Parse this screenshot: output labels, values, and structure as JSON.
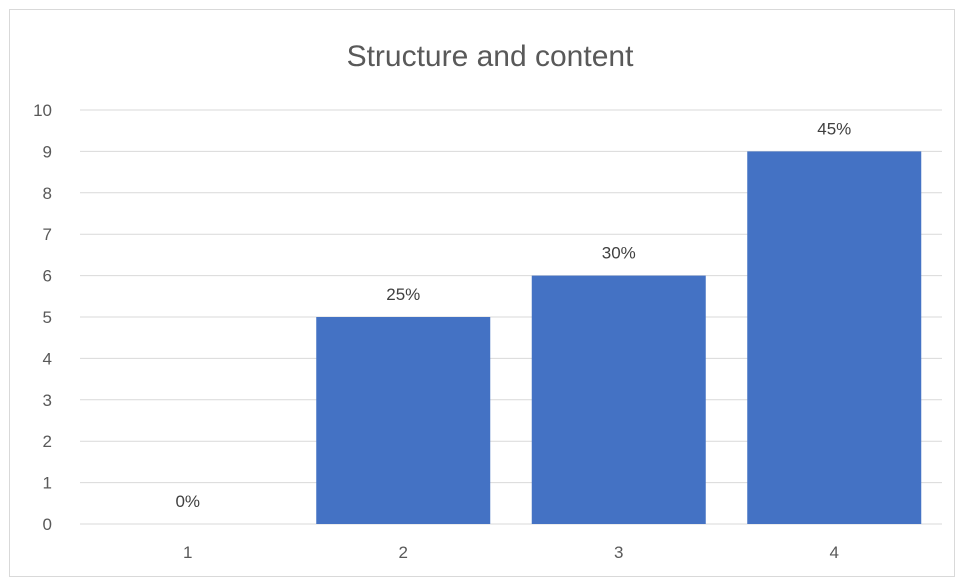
{
  "chart_data": {
    "type": "bar",
    "title": "Structure and content",
    "xlabel": "",
    "ylabel": "",
    "categories": [
      "1",
      "2",
      "3",
      "4"
    ],
    "series": [
      {
        "values": [
          0,
          5,
          6,
          9
        ],
        "color": "#4472c4"
      }
    ],
    "data_labels": [
      "0%",
      "25%",
      "30%",
      "45%"
    ],
    "ylim": [
      0,
      10
    ],
    "y_ticks": [
      "0",
      "1",
      "2",
      "3",
      "4",
      "5",
      "6",
      "7",
      "8",
      "9",
      "10"
    ],
    "grid": true,
    "gridline_color": "#d9d9d9",
    "text_color": "#595959",
    "legend": "none"
  }
}
